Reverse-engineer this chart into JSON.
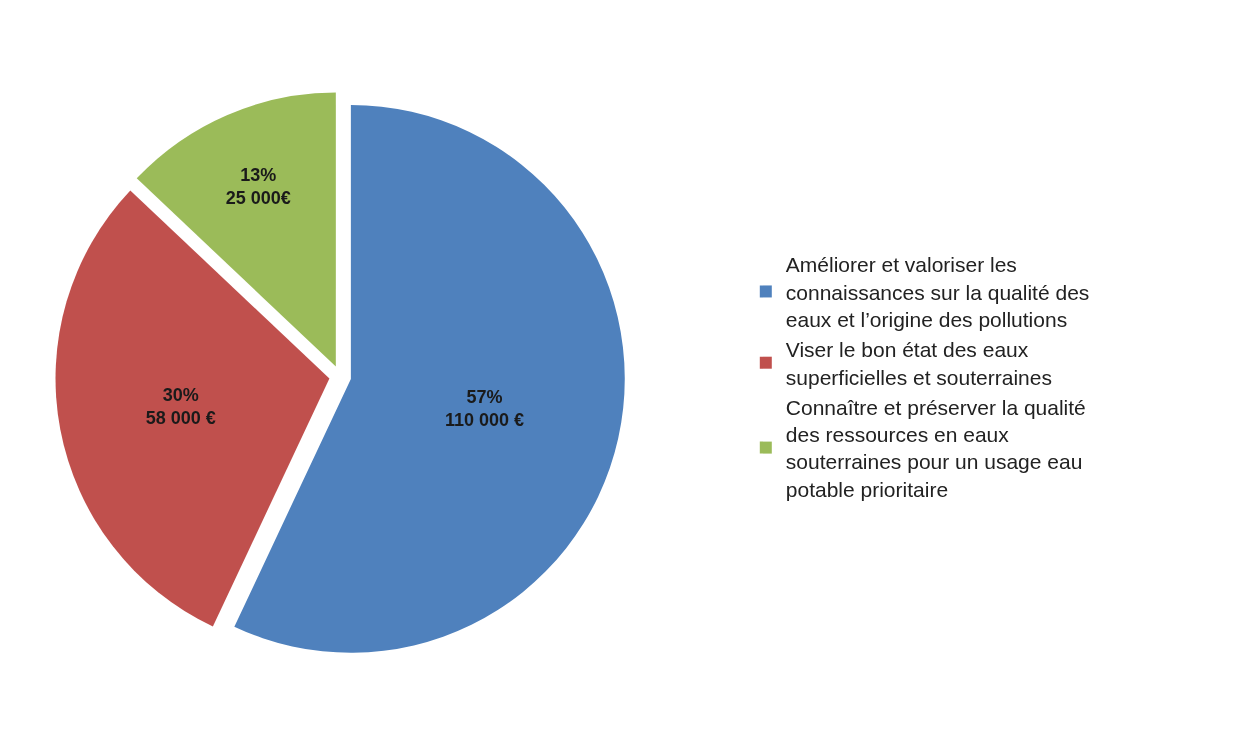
{
  "chart_data": {
    "type": "pie",
    "categories": [
      "Améliorer et valoriser les connaissances sur la qualité des eaux et l’origine des pollutions",
      "Viser le bon état des eaux superficielles et souterraines",
      "Connaître et préserver la qualité des ressources en eaux souterraines pour un usage eau potable prioritaire"
    ],
    "values": [
      110000,
      58000,
      25000
    ],
    "value_labels": [
      "57%\n110 000 €",
      "30%\n58 000 €",
      "13%\n25 000€"
    ],
    "colors": [
      "#4f81bd",
      "#c0504d",
      "#9bbb59"
    ],
    "legend": "right"
  }
}
